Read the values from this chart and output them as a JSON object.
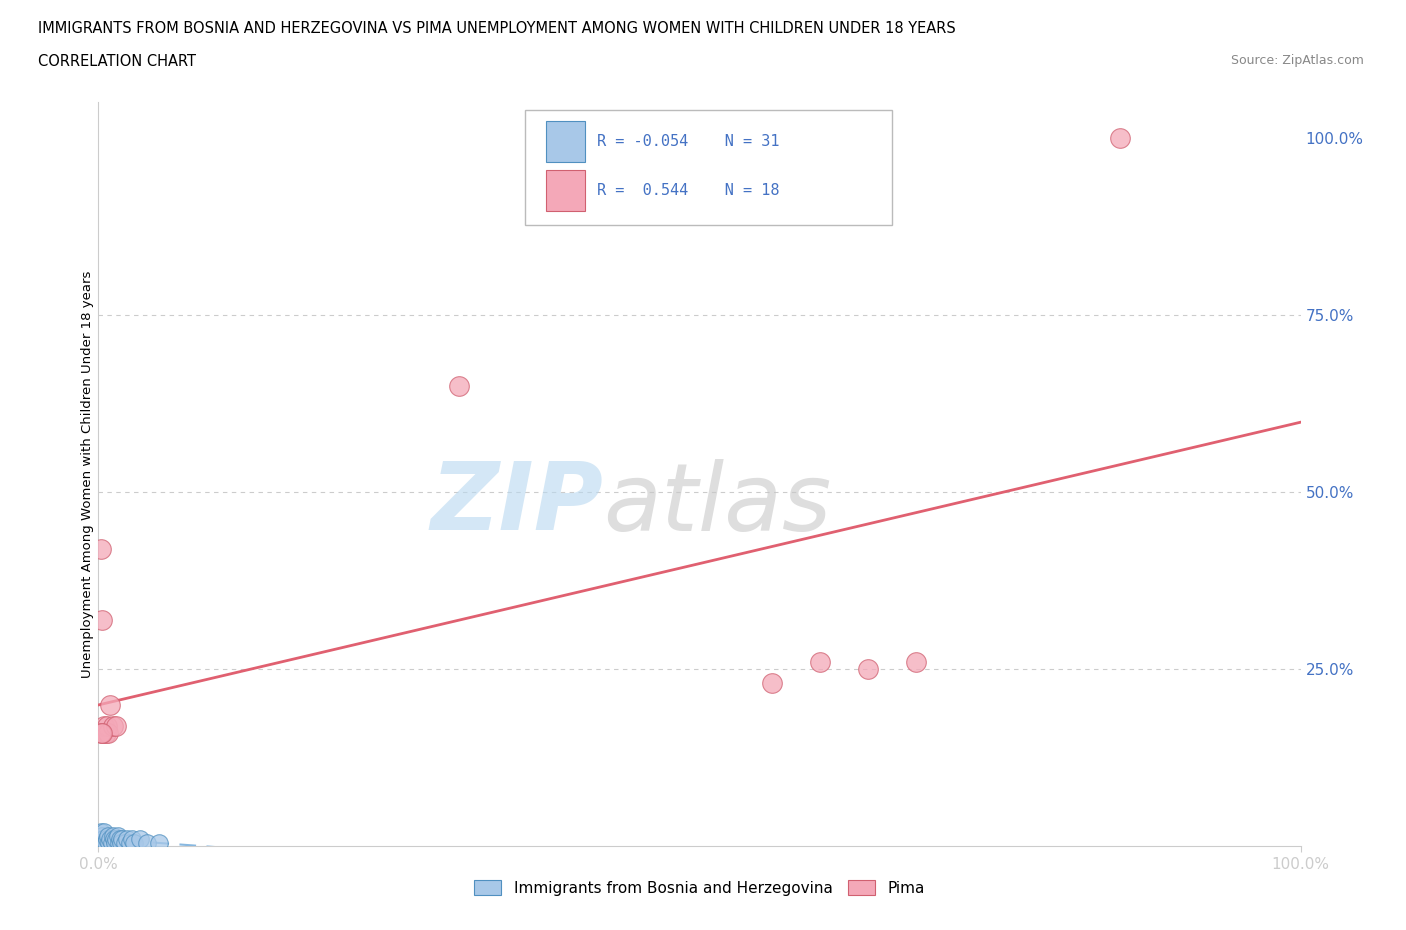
{
  "title_line1": "IMMIGRANTS FROM BOSNIA AND HERZEGOVINA VS PIMA UNEMPLOYMENT AMONG WOMEN WITH CHILDREN UNDER 18 YEARS",
  "title_line2": "CORRELATION CHART",
  "source": "Source: ZipAtlas.com",
  "ylabel": "Unemployment Among Women with Children Under 18 years",
  "color_blue": "#a8c8e8",
  "color_pink": "#f4a8b8",
  "color_blue_edge": "#5090c0",
  "color_pink_edge": "#d06070",
  "color_blue_line": "#88b8e0",
  "color_pink_line": "#e06070",
  "blue_scatter_x": [
    0.001,
    0.002,
    0.002,
    0.003,
    0.003,
    0.004,
    0.005,
    0.005,
    0.006,
    0.007,
    0.008,
    0.009,
    0.01,
    0.011,
    0.012,
    0.013,
    0.014,
    0.015,
    0.016,
    0.017,
    0.018,
    0.019,
    0.02,
    0.022,
    0.024,
    0.026,
    0.028,
    0.03,
    0.035,
    0.04,
    0.05
  ],
  "blue_scatter_y": [
    0.005,
    0.01,
    0.02,
    0.005,
    0.015,
    0.01,
    0.005,
    0.02,
    0.005,
    0.01,
    0.015,
    0.005,
    0.01,
    0.005,
    0.015,
    0.01,
    0.005,
    0.01,
    0.015,
    0.005,
    0.01,
    0.005,
    0.01,
    0.005,
    0.01,
    0.005,
    0.01,
    0.005,
    0.01,
    0.005,
    0.005
  ],
  "pink_scatter_x": [
    0.002,
    0.003,
    0.004,
    0.005,
    0.006,
    0.007,
    0.008,
    0.01,
    0.012,
    0.015,
    0.3,
    0.56,
    0.6,
    0.64,
    0.68,
    0.85,
    0.002,
    0.003
  ],
  "pink_scatter_y": [
    0.42,
    0.32,
    0.16,
    0.17,
    0.16,
    0.17,
    0.16,
    0.2,
    0.17,
    0.17,
    0.65,
    0.23,
    0.26,
    0.25,
    0.26,
    1.0,
    0.16,
    0.16
  ]
}
